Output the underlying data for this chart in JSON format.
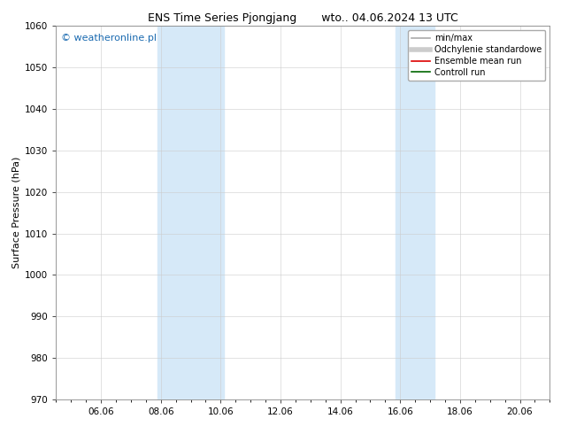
{
  "title_left": "ENS Time Series Pjongjang",
  "title_right": "wto.. 04.06.2024 13 UTC",
  "ylabel": "Surface Pressure (hPa)",
  "ylim": [
    970,
    1060
  ],
  "yticks": [
    970,
    980,
    990,
    1000,
    1010,
    1020,
    1030,
    1040,
    1050,
    1060
  ],
  "xlim": [
    4.5,
    21.0
  ],
  "xtick_positions": [
    6.0,
    8.0,
    10.0,
    12.0,
    14.0,
    16.0,
    18.0,
    20.0
  ],
  "xtick_labels": [
    "06.06",
    "08.06",
    "10.06",
    "12.06",
    "14.06",
    "16.06",
    "18.06",
    "20.06"
  ],
  "shaded_bands": [
    {
      "xmin": 7.9,
      "xmax": 10.1
    },
    {
      "xmin": 15.85,
      "xmax": 17.15
    }
  ],
  "band_color": "#d6e9f8",
  "watermark_text": "© weatheronline.pl",
  "watermark_color": "#1a6ab0",
  "legend_entries": [
    {
      "label": "min/max",
      "color": "#aaaaaa",
      "lw": 1.2,
      "style": "solid"
    },
    {
      "label": "Odchylenie standardowe",
      "color": "#cccccc",
      "lw": 4,
      "style": "solid"
    },
    {
      "label": "Ensemble mean run",
      "color": "#dd0000",
      "lw": 1.2,
      "style": "solid"
    },
    {
      "label": "Controll run",
      "color": "#006600",
      "lw": 1.2,
      "style": "solid"
    }
  ],
  "bg_color": "#ffffff",
  "grid_color": "#cccccc",
  "title_fontsize": 9,
  "axis_label_fontsize": 8,
  "tick_fontsize": 7.5,
  "watermark_fontsize": 8,
  "legend_fontsize": 7
}
